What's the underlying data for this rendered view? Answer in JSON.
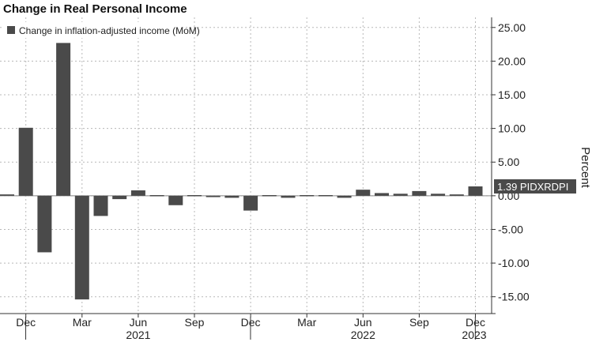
{
  "title": "Change in Real Personal Income",
  "colors": {
    "bar": "#4a4a4a",
    "grid": "#b8b8b8",
    "axis": "#333333",
    "tag_bg": "#4a4a4a"
  },
  "chart_data": {
    "type": "bar",
    "title": "Change in Real Personal Income",
    "ylabel": "Percent",
    "xlabel": "",
    "ylim": [
      -17.5,
      26.5
    ],
    "yticks": [
      25,
      20,
      15,
      10,
      5,
      0,
      -5,
      -10,
      -15
    ],
    "ytick_labels": [
      "25.00",
      "20.00",
      "15.00",
      "10.00",
      "5.00",
      "0.00",
      "-5.00",
      "-10.00",
      "-15.00"
    ],
    "grid": true,
    "legend_position": "top-left",
    "series": [
      {
        "name": "Change in inflation-adjusted income (MoM)",
        "values": [
          0.2,
          10.1,
          -8.4,
          22.7,
          -15.4,
          -3.0,
          -0.5,
          0.8,
          0.1,
          -1.4,
          0.1,
          -0.2,
          -0.3,
          -2.2,
          0.1,
          -0.3,
          0.1,
          0.1,
          -0.3,
          0.9,
          0.4,
          0.3,
          0.7,
          0.3,
          0.2,
          1.39
        ]
      }
    ],
    "categories": [
      "Nov 2020",
      "Dec 2020",
      "Jan 2021",
      "Feb 2021",
      "Mar 2021",
      "Apr 2021",
      "May 2021",
      "Jun 2021",
      "Jul 2021",
      "Aug 2021",
      "Sep 2021",
      "Oct 2021",
      "Nov 2021",
      "Dec 2021",
      "Jan 2022",
      "Feb 2022",
      "Mar 2022",
      "Apr 2022",
      "May 2022",
      "Jun 2022",
      "Jul 2022",
      "Aug 2022",
      "Sep 2022",
      "Oct 2022",
      "Nov 2022",
      "Dec 2022"
    ],
    "x_tick_labels": [
      {
        "label": "Dec",
        "index": 1
      },
      {
        "label": "Mar",
        "index": 4
      },
      {
        "label": "Jun",
        "index": 7
      },
      {
        "label": "Sep",
        "index": 10
      },
      {
        "label": "Dec",
        "index": 13
      },
      {
        "label": "Mar",
        "index": 16
      },
      {
        "label": "Jun",
        "index": 19
      },
      {
        "label": "Sep",
        "index": 22
      },
      {
        "label": "Dec",
        "index": 25
      }
    ],
    "year_labels": [
      "2021",
      "2022",
      "2023"
    ],
    "last_value_tag": {
      "value": "1.39",
      "ticker": "PIDXRDPI"
    }
  }
}
